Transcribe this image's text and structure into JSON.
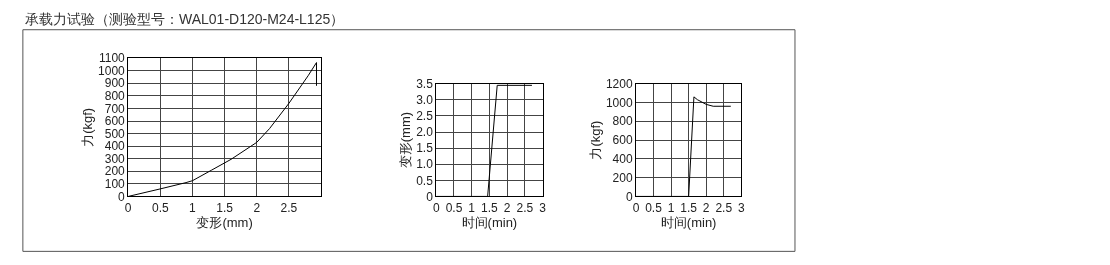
{
  "chart_data": [
    {
      "type": "line",
      "title": "承载力试验（测验型号：WAL01-D120-M24-L125）",
      "xlabel": "变形(mm)",
      "ylabel": "力(kgf)",
      "grid": true,
      "marker": "none",
      "line_style": "solid",
      "xlim": [
        0,
        3
      ],
      "xticks": [
        0,
        0.5,
        1,
        1.5,
        2,
        2.5
      ],
      "ylim": [
        0,
        1100
      ],
      "yticks": [
        0,
        100,
        200,
        300,
        400,
        500,
        600,
        700,
        800,
        900,
        1000,
        1100
      ],
      "series": [
        {
          "color": "#000000",
          "x": [
            0,
            0.5,
            0.9,
            1.0,
            1.3,
            1.6,
            2.0,
            2.2,
            2.5,
            2.8,
            2.93,
            2.93
          ],
          "values": [
            0,
            60,
            110,
            125,
            210,
            295,
            430,
            540,
            740,
            960,
            1065,
            880
          ]
        }
      ]
    },
    {
      "type": "line",
      "xlabel": "时间(min)",
      "ylabel": "变形(mm)",
      "grid": true,
      "marker": "none",
      "line_style": "solid",
      "xlim": [
        0,
        3
      ],
      "xticks": [
        0,
        0.5,
        1,
        1.5,
        2,
        2.5,
        3
      ],
      "ylim": [
        0,
        3.5
      ],
      "yticks": [
        0,
        {
          "value": 0.5,
          "label": "0.5"
        },
        {
          "value": 1,
          "label": "1.0"
        },
        {
          "value": 1.5,
          "label": "1.5"
        },
        {
          "value": 2,
          "label": "2.0"
        },
        {
          "value": 2.5,
          "label": "2.5"
        },
        {
          "value": 3,
          "label": "3.0"
        },
        {
          "value": 3.5,
          "label": "3.5"
        }
      ],
      "series": [
        {
          "color": "#000000",
          "x": [
            0,
            1.45,
            1.72,
            2.7
          ],
          "values": [
            0,
            0,
            3.45,
            3.45
          ]
        }
      ]
    },
    {
      "type": "line",
      "xlabel": "时间(min)",
      "ylabel": "力(kgf)",
      "grid": true,
      "marker": "none",
      "line_style": "solid",
      "xlim": [
        0,
        3
      ],
      "xticks": [
        0,
        0.5,
        1,
        1.5,
        2,
        2.5,
        3
      ],
      "ylim": [
        0,
        1200
      ],
      "yticks": [
        0,
        200,
        400,
        600,
        800,
        1000,
        1200
      ],
      "series": [
        {
          "color": "#000000",
          "x": [
            0,
            1.5,
            1.65,
            1.75,
            2.0,
            2.2,
            2.7
          ],
          "values": [
            0,
            0,
            1060,
            1030,
            980,
            960,
            960
          ]
        }
      ]
    }
  ]
}
